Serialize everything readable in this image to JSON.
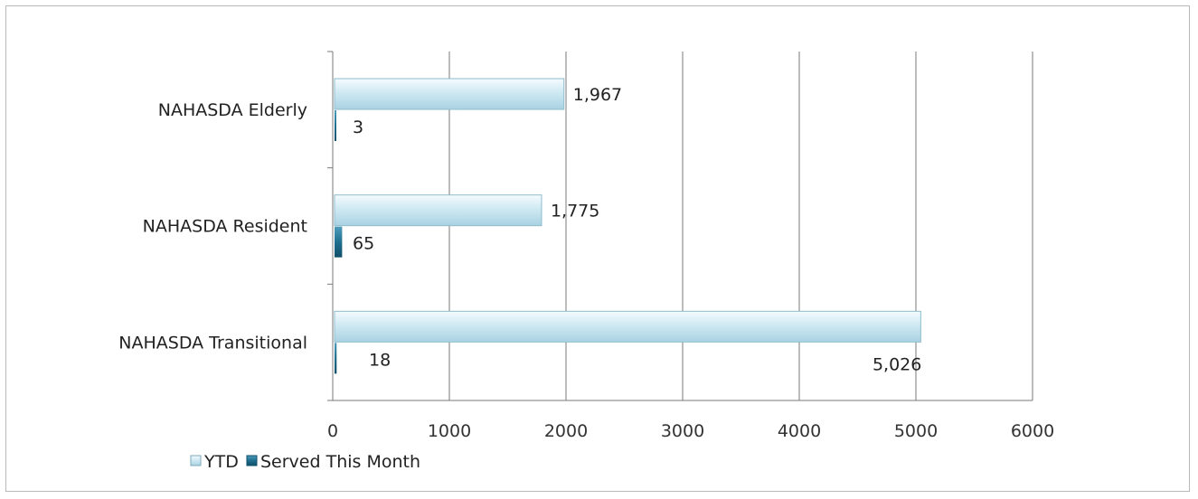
{
  "chart_data": {
    "type": "bar",
    "orientation": "horizontal",
    "categories": [
      "NAHASDA Elderly",
      "NAHASDA Resident",
      "NAHASDA Transitional"
    ],
    "series": [
      {
        "name": "YTD",
        "values": [
          1967,
          1775,
          5026
        ],
        "labels": [
          "1,967",
          "1,775",
          "5,026"
        ],
        "color": "#cfe9f3"
      },
      {
        "name": "Served This Month",
        "values": [
          3,
          65,
          18
        ],
        "labels": [
          "3",
          "65",
          "18"
        ],
        "color": "#1f6f8f"
      }
    ],
    "x_ticks": [
      "0",
      "1000",
      "2000",
      "3000",
      "4000",
      "5000",
      "6000"
    ],
    "xlim": [
      0,
      6000
    ],
    "grid": true,
    "legend_position": "bottom-left",
    "title": "",
    "xlabel": "",
    "ylabel": ""
  }
}
